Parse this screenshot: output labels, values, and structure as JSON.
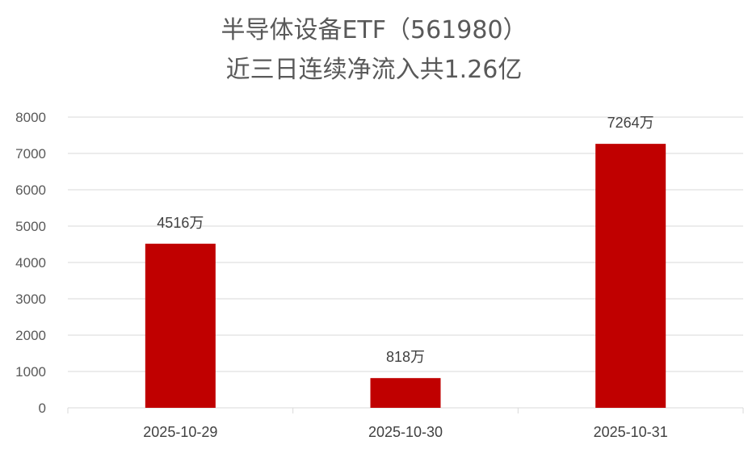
{
  "chart_data": {
    "type": "bar",
    "title_line1": "半导体设备ETF（561980）",
    "title_line2": "近三日连续净流入共1.26亿",
    "categories": [
      "2025-10-29",
      "2025-10-30",
      "2025-10-31"
    ],
    "values": [
      4516,
      818,
      7264
    ],
    "data_labels": [
      "4516万",
      "818万",
      "7264万"
    ],
    "ylim": [
      0,
      8000
    ],
    "yticks": [
      0,
      1000,
      2000,
      3000,
      4000,
      5000,
      6000,
      7000,
      8000
    ],
    "grid": true,
    "legend": "none",
    "colors": {
      "bar": "#C00000",
      "grid": "#D9D9D9",
      "text": "#595959"
    }
  }
}
